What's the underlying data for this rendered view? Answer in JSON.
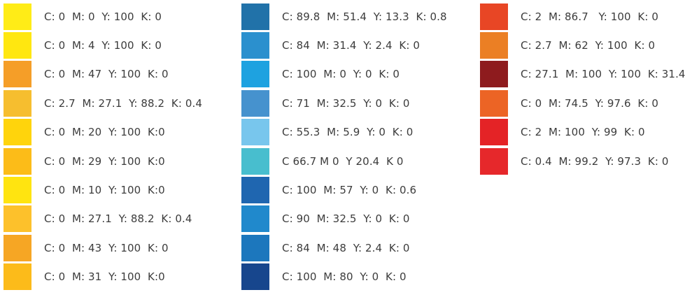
{
  "columns": [
    {
      "swatches": [
        {
          "color": "#FFEC17",
          "label": "C: 0  M: 0  Y: 100  K: 0"
        },
        {
          "color": "#FFE710",
          "label": "C: 0  M: 4  Y: 100  K: 0"
        },
        {
          "color": "#F59E28",
          "label": "C: 0  M: 47  Y: 100  K: 0"
        },
        {
          "color": "#F6BE2F",
          "label": "C: 2.7  M: 27.1  Y: 88.2  K: 0.4"
        },
        {
          "color": "#FFD40C",
          "label": "C: 0  M: 20  Y: 100  K:0"
        },
        {
          "color": "#FCBC18",
          "label": "C: 0  M: 29  Y: 100  K:0"
        },
        {
          "color": "#FFE410",
          "label": "C: 0  M: 10  Y: 100  K:0"
        },
        {
          "color": "#FDC12B",
          "label": "C: 0  M: 27.1  Y: 88.2  K: 0.4"
        },
        {
          "color": "#F6A624",
          "label": "C: 0  M: 43  Y: 100  K: 0"
        },
        {
          "color": "#FCBB1A",
          "label": "C: 0  M: 31  Y: 100  K:0"
        }
      ]
    },
    {
      "swatches": [
        {
          "color": "#2172A9",
          "label": "C: 89.8  M: 51.4  Y: 13.3  K: 0.8"
        },
        {
          "color": "#2B90CE",
          "label": "C: 84  M: 31.4  Y: 2.4  K: 0"
        },
        {
          "color": "#1EA2E0",
          "label": "C: 100  M: 0  Y: 0  K: 0"
        },
        {
          "color": "#4692CE",
          "label": "C: 71  M: 32.5  Y: 0  K: 0"
        },
        {
          "color": "#78C6ED",
          "label": "C: 55.3  M: 5.9  Y: 0  K: 0"
        },
        {
          "color": "#48BECE",
          "label": "C 66.7 M 0  Y 20.4  K 0"
        },
        {
          "color": "#1F66B0",
          "label": "C: 100  M: 57  Y: 0  K: 0.6"
        },
        {
          "color": "#2089CC",
          "label": "C: 90  M: 32.5  Y: 0  K: 0"
        },
        {
          "color": "#1C77BD",
          "label": "C: 84  M: 48  Y: 2.4  K: 0"
        },
        {
          "color": "#17468D",
          "label": "C: 100  M: 80  Y: 0  K: 0"
        }
      ]
    },
    {
      "swatches": [
        {
          "color": "#E84625",
          "label": "C: 2  M: 86.7   Y: 100  K: 0"
        },
        {
          "color": "#EB7F24",
          "label": "C: 2.7  M: 62  Y: 100  K: 0"
        },
        {
          "color": "#8E1B1E",
          "label": "C: 27.1  M: 100  Y: 100  K: 31.4"
        },
        {
          "color": "#EC6425",
          "label": "C: 0  M: 74.5  Y: 97.6  K: 0"
        },
        {
          "color": "#E42326",
          "label": "C: 2  M: 100  Y: 99  K: 0"
        },
        {
          "color": "#E6282B",
          "label": "C: 0.4  M: 99.2  Y: 97.3  K: 0"
        }
      ]
    }
  ]
}
